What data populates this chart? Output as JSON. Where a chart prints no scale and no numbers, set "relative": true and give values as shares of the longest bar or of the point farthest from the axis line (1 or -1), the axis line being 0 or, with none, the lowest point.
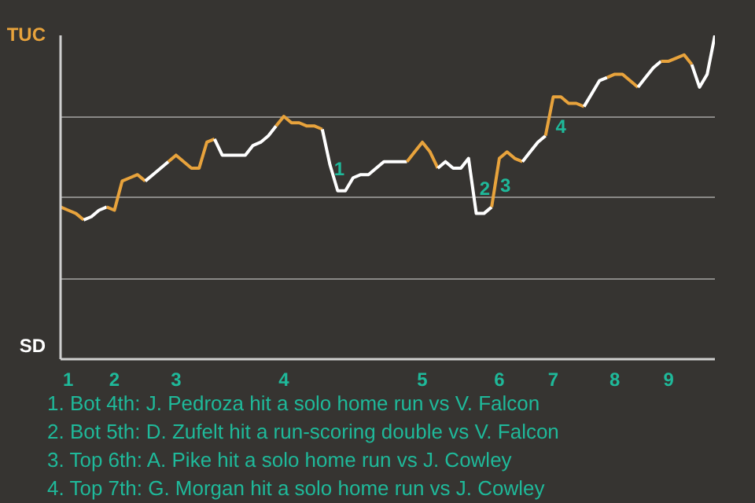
{
  "chart_data": {
    "type": "line",
    "relative": true,
    "grid": "y",
    "categories": [
      null,
      "1",
      null,
      null,
      null,
      null,
      null,
      "2",
      null,
      null,
      null,
      null,
      null,
      null,
      null,
      "3",
      null,
      null,
      null,
      null,
      null,
      null,
      null,
      null,
      null,
      null,
      null,
      null,
      null,
      "4",
      null,
      null,
      null,
      null,
      null,
      null,
      null,
      null,
      null,
      null,
      null,
      null,
      null,
      null,
      null,
      null,
      null,
      "5",
      null,
      null,
      null,
      null,
      null,
      null,
      null,
      null,
      null,
      "6",
      null,
      null,
      null,
      null,
      null,
      null,
      "7",
      null,
      null,
      null,
      null,
      null,
      null,
      null,
      "8",
      null,
      null,
      null,
      null,
      null,
      null,
      "9",
      null,
      null,
      null,
      null,
      null,
      null
    ],
    "series": [
      {
        "name": "TUC",
        "color": "#e8a33c",
        "values": [
          0.47,
          0.46,
          0.45,
          0.43,
          null,
          null,
          null,
          null,
          null,
          null,
          null,
          null,
          null,
          null,
          null,
          null,
          null,
          null,
          null,
          null,
          null,
          null,
          null,
          null,
          null,
          null,
          null,
          null,
          null,
          null,
          null,
          null,
          null,
          null,
          null,
          null,
          null,
          null,
          null,
          null,
          null,
          null,
          null,
          null,
          null,
          null,
          null,
          null,
          null,
          null,
          null,
          null,
          null,
          null,
          null,
          null,
          null,
          null,
          null,
          null,
          null,
          null,
          null,
          null,
          null,
          null,
          null,
          null,
          null,
          null,
          null,
          null,
          null,
          null,
          null,
          null,
          null,
          null,
          null,
          null,
          null,
          null,
          null,
          null,
          null,
          null
        ]
      },
      {
        "name": "SD",
        "color": "#ffffff",
        "values": [
          null,
          null,
          null,
          0.43,
          0.44,
          0.46,
          0.47,
          null,
          null,
          null,
          null,
          null,
          null,
          null,
          null,
          null,
          null,
          null,
          null,
          null,
          null,
          null,
          null,
          null,
          null,
          null,
          null,
          null,
          null,
          null,
          null,
          null,
          null,
          null,
          null,
          null,
          null,
          null,
          null,
          null,
          null,
          null,
          null,
          null,
          null,
          null,
          null,
          null,
          null,
          null,
          null,
          null,
          null,
          null,
          null,
          null,
          null,
          null,
          null,
          null,
          null,
          null,
          null,
          null,
          null,
          null,
          null,
          null,
          null,
          null,
          null,
          null,
          null,
          null,
          null,
          null,
          null,
          null,
          null,
          null,
          null,
          null,
          null,
          null,
          null,
          null
        ]
      },
      {
        "color": "#e8a33c",
        "values": [
          null,
          null,
          null,
          null,
          null,
          null,
          0.47,
          0.46,
          0.55,
          0.56,
          0.57,
          0.55,
          null,
          null,
          null,
          null,
          null,
          null,
          null,
          null,
          null,
          null,
          null,
          null,
          null,
          null,
          null,
          null,
          null,
          null,
          null,
          null,
          null,
          null,
          null,
          null,
          null,
          null,
          null,
          null,
          null,
          null,
          null,
          null,
          null,
          null,
          null,
          null,
          null,
          null,
          null,
          null,
          null,
          null,
          null,
          null,
          null,
          null,
          null,
          null,
          null,
          null,
          null,
          null,
          null,
          null,
          null,
          null,
          null,
          null,
          null,
          null,
          null,
          null,
          null,
          null,
          null,
          null,
          null,
          null,
          null,
          null,
          null,
          null,
          null,
          null
        ]
      },
      {
        "color": "#ffffff",
        "values": [
          null,
          null,
          null,
          null,
          null,
          null,
          null,
          null,
          null,
          null,
          null,
          0.55,
          0.57,
          0.59,
          0.61,
          null,
          null,
          null,
          null,
          null,
          null,
          null,
          null,
          null,
          null,
          null,
          null,
          null,
          null,
          null,
          null,
          null,
          null,
          null,
          null,
          null,
          null,
          null,
          null,
          null,
          null,
          null,
          null,
          null,
          null,
          null,
          null,
          null,
          null,
          null,
          null,
          null,
          null,
          null,
          null,
          null,
          null,
          null,
          null,
          null,
          null,
          null,
          null,
          null,
          null,
          null,
          null,
          null,
          null,
          null,
          null,
          null,
          null,
          null,
          null,
          null,
          null,
          null,
          null,
          null,
          null,
          null,
          null,
          null,
          null,
          null
        ]
      },
      {
        "color": "#e8a33c",
        "values": [
          null,
          null,
          null,
          null,
          null,
          null,
          null,
          null,
          null,
          null,
          null,
          null,
          null,
          null,
          0.61,
          0.63,
          0.61,
          0.59,
          0.59,
          0.67,
          0.68,
          null,
          null,
          null,
          null,
          null,
          null,
          null,
          null,
          null,
          null,
          null,
          null,
          null,
          null,
          null,
          null,
          null,
          null,
          null,
          null,
          null,
          null,
          null,
          null,
          null,
          null,
          null,
          null,
          null,
          null,
          null,
          null,
          null,
          null,
          null,
          null,
          null,
          null,
          null,
          null,
          null,
          null,
          null,
          null,
          null,
          null,
          null,
          null,
          null,
          null,
          null,
          null,
          null,
          null,
          null,
          null,
          null,
          null,
          null,
          null,
          null,
          null,
          null,
          null,
          null
        ]
      },
      {
        "color": "#ffffff",
        "values": [
          null,
          null,
          null,
          null,
          null,
          null,
          null,
          null,
          null,
          null,
          null,
          null,
          null,
          null,
          null,
          null,
          null,
          null,
          null,
          null,
          0.68,
          0.63,
          0.63,
          0.63,
          0.63,
          0.66,
          0.67,
          0.69,
          0.72,
          null,
          null,
          null,
          null,
          null,
          null,
          null,
          null,
          null,
          null,
          null,
          null,
          null,
          null,
          null,
          null,
          null,
          null,
          null,
          null,
          null,
          null,
          null,
          null,
          null,
          null,
          null,
          null,
          null,
          null,
          null,
          null,
          null,
          null,
          null,
          null,
          null,
          null,
          null,
          null,
          null,
          null,
          null,
          null,
          null,
          null,
          null,
          null,
          null,
          null,
          null,
          null,
          null,
          null,
          null,
          null,
          null
        ]
      },
      {
        "color": "#e8a33c",
        "values": [
          null,
          null,
          null,
          null,
          null,
          null,
          null,
          null,
          null,
          null,
          null,
          null,
          null,
          null,
          null,
          null,
          null,
          null,
          null,
          null,
          null,
          null,
          null,
          null,
          null,
          null,
          null,
          null,
          0.72,
          0.75,
          0.73,
          0.73,
          0.72,
          0.72,
          0.71,
          null,
          null,
          null,
          null,
          null,
          null,
          null,
          null,
          null,
          null,
          null,
          null,
          null,
          null,
          null,
          null,
          null,
          null,
          null,
          null,
          null,
          null,
          null,
          null,
          null,
          null,
          null,
          null,
          null,
          null,
          null,
          null,
          null,
          null,
          null,
          null,
          null,
          null,
          null,
          null,
          null,
          null,
          null,
          null,
          null,
          null,
          null,
          null,
          null,
          null,
          null
        ]
      },
      {
        "color": "#ffffff",
        "values": [
          null,
          null,
          null,
          null,
          null,
          null,
          null,
          null,
          null,
          null,
          null,
          null,
          null,
          null,
          null,
          null,
          null,
          null,
          null,
          null,
          null,
          null,
          null,
          null,
          null,
          null,
          null,
          null,
          null,
          null,
          null,
          null,
          null,
          null,
          0.71,
          0.6,
          0.52,
          0.52,
          0.56,
          0.57,
          0.57,
          0.59,
          0.61,
          0.61,
          0.61,
          0.61,
          null,
          null,
          null,
          null,
          null,
          null,
          null,
          null,
          null,
          null,
          null,
          null,
          null,
          null,
          null,
          null,
          null,
          null,
          null,
          null,
          null,
          null,
          null,
          null,
          null,
          null,
          null,
          null,
          null,
          null,
          null,
          null,
          null,
          null,
          null,
          null,
          null,
          null,
          null,
          null
        ]
      },
      {
        "color": "#e8a33c",
        "values": [
          null,
          null,
          null,
          null,
          null,
          null,
          null,
          null,
          null,
          null,
          null,
          null,
          null,
          null,
          null,
          null,
          null,
          null,
          null,
          null,
          null,
          null,
          null,
          null,
          null,
          null,
          null,
          null,
          null,
          null,
          null,
          null,
          null,
          null,
          null,
          null,
          null,
          null,
          null,
          null,
          null,
          null,
          null,
          null,
          null,
          0.61,
          0.64,
          0.67,
          0.64,
          0.59,
          null,
          null,
          null,
          null,
          null,
          null,
          null,
          null,
          null,
          null,
          null,
          null,
          null,
          null,
          null,
          null,
          null,
          null,
          null,
          null,
          null,
          null,
          null,
          null,
          null,
          null,
          null,
          null,
          null,
          null,
          null,
          null,
          null,
          null,
          null,
          null
        ]
      },
      {
        "color": "#ffffff",
        "values": [
          null,
          null,
          null,
          null,
          null,
          null,
          null,
          null,
          null,
          null,
          null,
          null,
          null,
          null,
          null,
          null,
          null,
          null,
          null,
          null,
          null,
          null,
          null,
          null,
          null,
          null,
          null,
          null,
          null,
          null,
          null,
          null,
          null,
          null,
          null,
          null,
          null,
          null,
          null,
          null,
          null,
          null,
          null,
          null,
          null,
          null,
          null,
          null,
          null,
          0.59,
          0.61,
          0.59,
          0.59,
          0.62,
          0.45,
          0.45,
          0.47,
          null,
          null,
          null,
          null,
          null,
          null,
          null,
          null,
          null,
          null,
          null,
          null,
          null,
          null,
          null,
          null,
          null,
          null,
          null,
          null,
          null,
          null,
          null,
          null,
          null,
          null,
          null,
          null,
          null
        ]
      },
      {
        "color": "#e8a33c",
        "values": [
          null,
          null,
          null,
          null,
          null,
          null,
          null,
          null,
          null,
          null,
          null,
          null,
          null,
          null,
          null,
          null,
          null,
          null,
          null,
          null,
          null,
          null,
          null,
          null,
          null,
          null,
          null,
          null,
          null,
          null,
          null,
          null,
          null,
          null,
          null,
          null,
          null,
          null,
          null,
          null,
          null,
          null,
          null,
          null,
          null,
          null,
          null,
          null,
          null,
          null,
          null,
          null,
          null,
          null,
          null,
          null,
          0.47,
          0.62,
          0.64,
          0.62,
          0.61,
          null,
          null,
          null,
          null,
          null,
          null,
          null,
          null,
          null,
          null,
          null,
          null,
          null,
          null,
          null,
          null,
          null,
          null,
          null,
          null,
          null,
          null,
          null,
          null,
          null
        ]
      },
      {
        "color": "#ffffff",
        "values": [
          null,
          null,
          null,
          null,
          null,
          null,
          null,
          null,
          null,
          null,
          null,
          null,
          null,
          null,
          null,
          null,
          null,
          null,
          null,
          null,
          null,
          null,
          null,
          null,
          null,
          null,
          null,
          null,
          null,
          null,
          null,
          null,
          null,
          null,
          null,
          null,
          null,
          null,
          null,
          null,
          null,
          null,
          null,
          null,
          null,
          null,
          null,
          null,
          null,
          null,
          null,
          null,
          null,
          null,
          null,
          null,
          null,
          null,
          null,
          null,
          0.61,
          0.64,
          0.67,
          0.69,
          null,
          null,
          null,
          null,
          null,
          null,
          null,
          null,
          null,
          null,
          null,
          null,
          null,
          null,
          null,
          null,
          null,
          null,
          null,
          null,
          null,
          null
        ]
      },
      {
        "color": "#e8a33c",
        "values": [
          null,
          null,
          null,
          null,
          null,
          null,
          null,
          null,
          null,
          null,
          null,
          null,
          null,
          null,
          null,
          null,
          null,
          null,
          null,
          null,
          null,
          null,
          null,
          null,
          null,
          null,
          null,
          null,
          null,
          null,
          null,
          null,
          null,
          null,
          null,
          null,
          null,
          null,
          null,
          null,
          null,
          null,
          null,
          null,
          null,
          null,
          null,
          null,
          null,
          null,
          null,
          null,
          null,
          null,
          null,
          null,
          null,
          null,
          null,
          null,
          null,
          null,
          null,
          0.69,
          0.81,
          0.81,
          0.79,
          0.79,
          0.78,
          null,
          null,
          null,
          null,
          null,
          null,
          null,
          null,
          null,
          null,
          null,
          null,
          null,
          null,
          null,
          null,
          null
        ]
      },
      {
        "color": "#ffffff",
        "values": [
          null,
          null,
          null,
          null,
          null,
          null,
          null,
          null,
          null,
          null,
          null,
          null,
          null,
          null,
          null,
          null,
          null,
          null,
          null,
          null,
          null,
          null,
          null,
          null,
          null,
          null,
          null,
          null,
          null,
          null,
          null,
          null,
          null,
          null,
          null,
          null,
          null,
          null,
          null,
          null,
          null,
          null,
          null,
          null,
          null,
          null,
          null,
          null,
          null,
          null,
          null,
          null,
          null,
          null,
          null,
          null,
          null,
          null,
          null,
          null,
          null,
          null,
          null,
          null,
          null,
          null,
          null,
          null,
          0.78,
          0.82,
          0.86,
          0.87,
          null,
          null,
          null,
          null,
          null,
          null,
          null,
          null,
          null,
          null,
          null,
          null,
          null,
          null
        ]
      },
      {
        "color": "#e8a33c",
        "values": [
          null,
          null,
          null,
          null,
          null,
          null,
          null,
          null,
          null,
          null,
          null,
          null,
          null,
          null,
          null,
          null,
          null,
          null,
          null,
          null,
          null,
          null,
          null,
          null,
          null,
          null,
          null,
          null,
          null,
          null,
          null,
          null,
          null,
          null,
          null,
          null,
          null,
          null,
          null,
          null,
          null,
          null,
          null,
          null,
          null,
          null,
          null,
          null,
          null,
          null,
          null,
          null,
          null,
          null,
          null,
          null,
          null,
          null,
          null,
          null,
          null,
          null,
          null,
          null,
          null,
          null,
          null,
          null,
          null,
          null,
          null,
          0.87,
          0.88,
          0.88,
          0.86,
          0.84,
          null,
          null,
          null,
          null,
          null,
          null,
          null,
          null,
          null,
          null
        ]
      },
      {
        "color": "#ffffff",
        "values": [
          null,
          null,
          null,
          null,
          null,
          null,
          null,
          null,
          null,
          null,
          null,
          null,
          null,
          null,
          null,
          null,
          null,
          null,
          null,
          null,
          null,
          null,
          null,
          null,
          null,
          null,
          null,
          null,
          null,
          null,
          null,
          null,
          null,
          null,
          null,
          null,
          null,
          null,
          null,
          null,
          null,
          null,
          null,
          null,
          null,
          null,
          null,
          null,
          null,
          null,
          null,
          null,
          null,
          null,
          null,
          null,
          null,
          null,
          null,
          null,
          null,
          null,
          null,
          null,
          null,
          null,
          null,
          null,
          null,
          null,
          null,
          null,
          null,
          null,
          null,
          0.84,
          0.87,
          0.9,
          0.92,
          null,
          null,
          null,
          null,
          null,
          null,
          null
        ]
      },
      {
        "color": "#e8a33c",
        "values": [
          null,
          null,
          null,
          null,
          null,
          null,
          null,
          null,
          null,
          null,
          null,
          null,
          null,
          null,
          null,
          null,
          null,
          null,
          null,
          null,
          null,
          null,
          null,
          null,
          null,
          null,
          null,
          null,
          null,
          null,
          null,
          null,
          null,
          null,
          null,
          null,
          null,
          null,
          null,
          null,
          null,
          null,
          null,
          null,
          null,
          null,
          null,
          null,
          null,
          null,
          null,
          null,
          null,
          null,
          null,
          null,
          null,
          null,
          null,
          null,
          null,
          null,
          null,
          null,
          null,
          null,
          null,
          null,
          null,
          null,
          null,
          null,
          null,
          null,
          null,
          null,
          null,
          null,
          0.92,
          0.92,
          0.93,
          0.94,
          0.91,
          null,
          null,
          null
        ]
      },
      {
        "color": "#ffffff",
        "values": [
          null,
          null,
          null,
          null,
          null,
          null,
          null,
          null,
          null,
          null,
          null,
          null,
          null,
          null,
          null,
          null,
          null,
          null,
          null,
          null,
          null,
          null,
          null,
          null,
          null,
          null,
          null,
          null,
          null,
          null,
          null,
          null,
          null,
          null,
          null,
          null,
          null,
          null,
          null,
          null,
          null,
          null,
          null,
          null,
          null,
          null,
          null,
          null,
          null,
          null,
          null,
          null,
          null,
          null,
          null,
          null,
          null,
          null,
          null,
          null,
          null,
          null,
          null,
          null,
          null,
          null,
          null,
          null,
          null,
          null,
          null,
          null,
          null,
          null,
          null,
          null,
          null,
          null,
          null,
          null,
          null,
          null,
          0.91,
          0.84,
          0.88,
          1.0
        ]
      }
    ],
    "annotations": [
      "1",
      "2",
      "3",
      "4",
      "1. Bot 4th: J. Pedroza hit a solo home run vs V. Falcon",
      "2. Bot 5th: D. Zufelt hit a run-scoring double vs V. Falcon",
      "3. Top 6th: A. Pike hit a solo home run vs J. Cowley",
      "4. Top 7th: G. Morgan hit a solo home run vs J. Cowley"
    ]
  }
}
